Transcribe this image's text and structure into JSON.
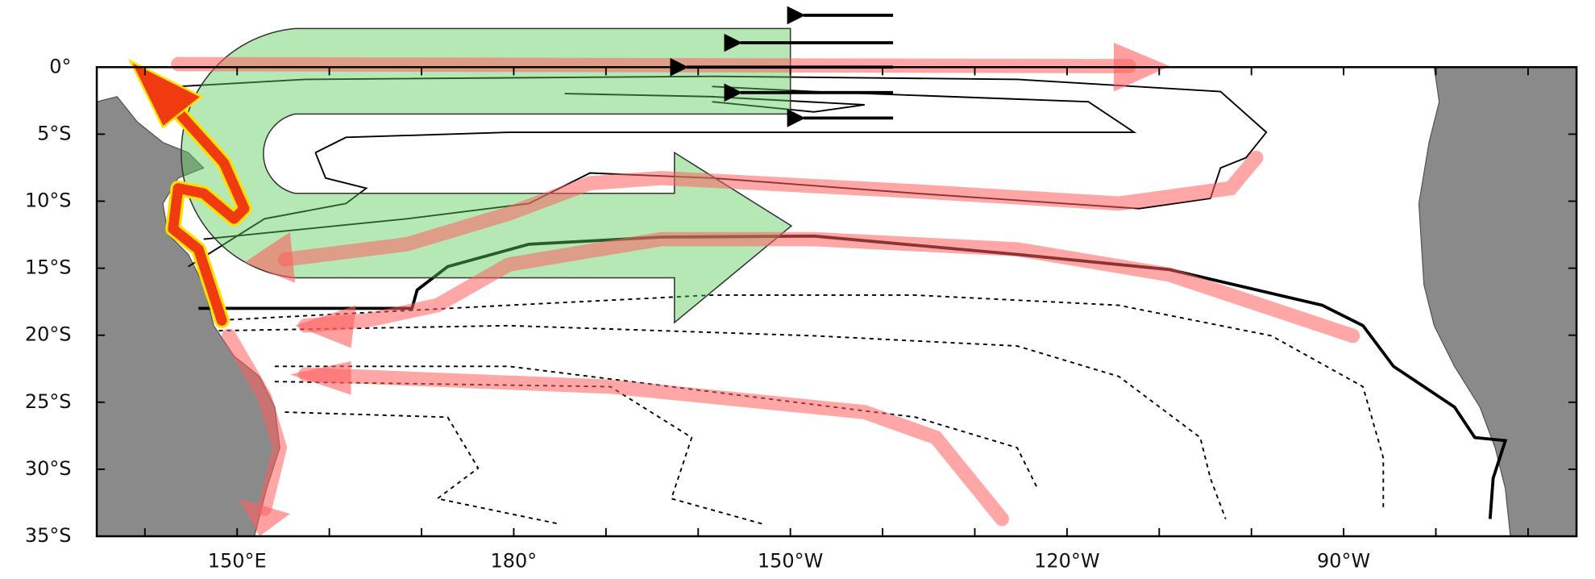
{
  "map": {
    "lat_labels": [
      "0°",
      "5°S",
      "10°S",
      "15°S",
      "20°S",
      "25°S",
      "30°S",
      "35°S"
    ],
    "lon_labels": [
      "150°E",
      "180°",
      "150°W",
      "120°W",
      "90°W"
    ]
  }
}
